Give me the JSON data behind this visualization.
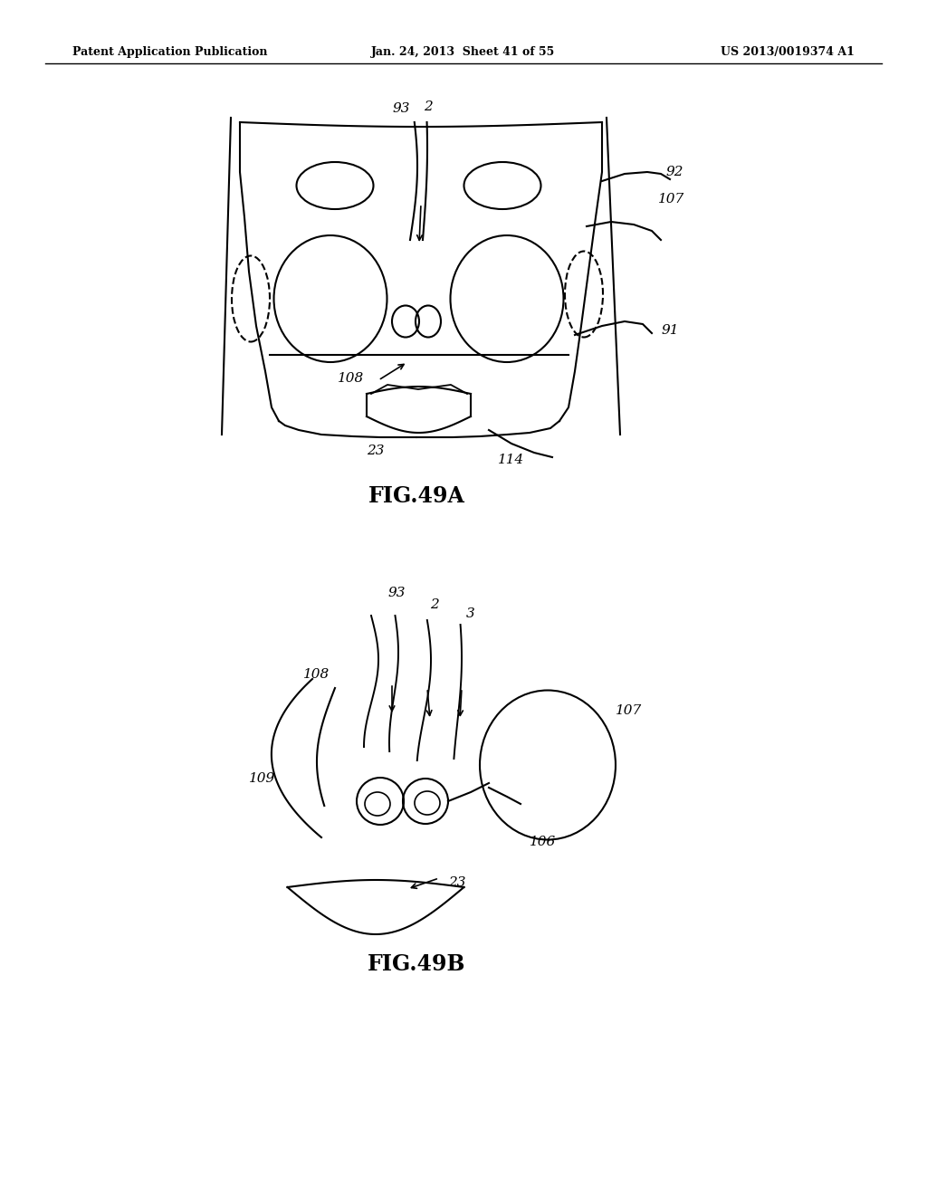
{
  "background_color": "#ffffff",
  "header_left": "Patent Application Publication",
  "header_center": "Jan. 24, 2013  Sheet 41 of 55",
  "header_right": "US 2013/0019374 A1",
  "fig_label_A": "FIG.49A",
  "fig_label_B": "FIG.49B",
  "text_color": "#000000",
  "line_color": "#000000"
}
